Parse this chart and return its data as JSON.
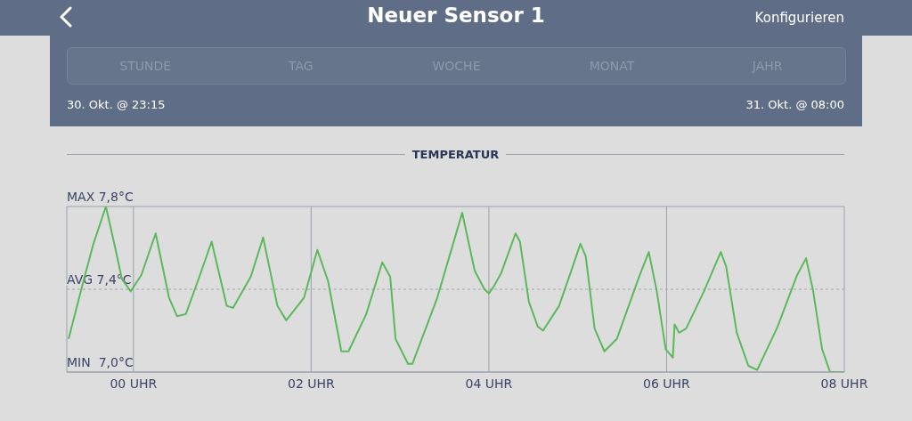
{
  "chart_data": {
    "type": "line",
    "title": "Neuer Sensor 1",
    "subtitle": "TEMPERATUR",
    "annotations": [
      "Konfigurieren",
      "STUNDE",
      "TAG",
      "WOCHE",
      "MONAT",
      "JAHR",
      "30. Okt. @ 23:15",
      "31. Okt. @ 08:00",
      "MIN",
      "MAX"
    ],
    "x": [
      -0.73,
      -0.55,
      -0.45,
      -0.31,
      -0.21,
      -0.13,
      -0.03,
      0.09,
      0.25,
      0.4,
      0.49,
      0.59,
      0.75,
      0.88,
      1.05,
      1.12,
      1.32,
      1.46,
      1.62,
      1.72,
      1.92,
      2.07,
      2.19,
      2.34,
      2.42,
      2.62,
      2.8,
      2.89,
      2.95,
      3.09,
      3.14,
      3.42,
      3.7,
      3.84,
      3.95,
      4.0,
      4.05,
      4.14,
      4.3,
      4.35,
      4.45,
      4.55,
      4.61,
      4.79,
      4.92,
      5.03,
      5.09,
      5.19,
      5.3,
      5.44,
      5.69,
      5.8,
      5.89,
      5.99,
      6.07,
      6.09,
      6.14,
      6.22,
      6.42,
      6.61,
      6.67,
      6.79,
      6.92,
      7.02,
      7.25,
      7.47,
      7.57,
      7.65,
      7.75,
      7.84,
      7.92,
      8.0
    ],
    "series": [
      {
        "color": "#5cb85c",
        "values": [
          7.16,
          7.46,
          7.62,
          7.8,
          7.61,
          7.45,
          7.39,
          7.47,
          7.67,
          7.36,
          7.27,
          7.28,
          7.47,
          7.63,
          7.32,
          7.31,
          7.46,
          7.65,
          7.32,
          7.25,
          7.36,
          7.59,
          7.44,
          7.1,
          7.1,
          7.28,
          7.53,
          7.46,
          7.16,
          7.04,
          7.04,
          7.36,
          7.77,
          7.49,
          7.4,
          7.38,
          7.41,
          7.48,
          7.67,
          7.63,
          7.34,
          7.22,
          7.2,
          7.32,
          7.48,
          7.62,
          7.56,
          7.21,
          7.1,
          7.16,
          7.46,
          7.58,
          7.39,
          7.11,
          7.07,
          7.23,
          7.19,
          7.21,
          7.39,
          7.58,
          7.51,
          7.19,
          7.03,
          7.01,
          7.22,
          7.47,
          7.55,
          7.39,
          7.11,
          7.0,
          7.0,
          7.0
        ]
      }
    ],
    "xlim": [
      -0.75,
      8
    ],
    "xticks": [
      {
        "value": 0,
        "label": "00 UHR"
      },
      {
        "value": 2,
        "label": "02 UHR"
      },
      {
        "value": 4,
        "label": "04 UHR"
      },
      {
        "value": 6,
        "label": "06 UHR"
      },
      {
        "value": 8,
        "label": "08 UHR"
      }
    ],
    "ylim": [
      7.0,
      7.8
    ],
    "yticks": [
      {
        "value": 7.0,
        "label": "7,0°C"
      },
      {
        "value": 7.8,
        "label": "7,8°C"
      }
    ],
    "ref_lines": [
      {
        "axis": "y",
        "value": 7.4,
        "label": "AVG 7,4°C",
        "line_style": "dotted",
        "color": "#a0a4ae"
      }
    ],
    "grid": true
  }
}
